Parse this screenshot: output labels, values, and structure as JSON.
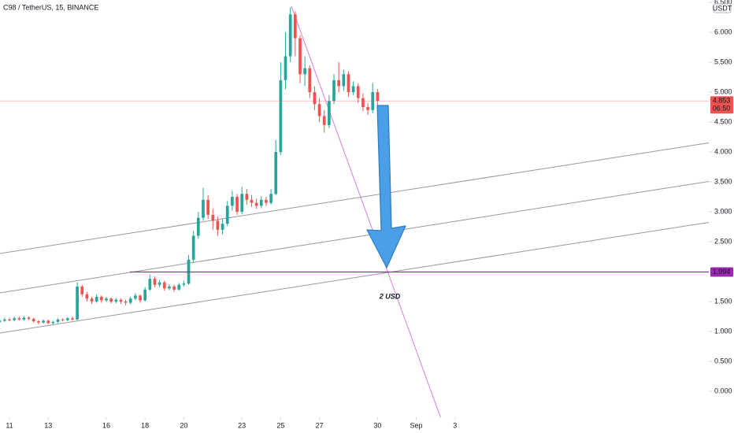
{
  "chart_data": {
    "type": "candlestick",
    "title": "C98 / TetherUS, 15, BINANCE",
    "currency": "USDT",
    "x": [
      10.5,
      10.75,
      11,
      11.25,
      11.5,
      11.75,
      12,
      12.25,
      12.5,
      12.75,
      13,
      13.25,
      13.5,
      13.75,
      14,
      14.25,
      14.5,
      14.75,
      15,
      15.25,
      15.5,
      15.75,
      16,
      16.25,
      16.5,
      16.75,
      17,
      17.25,
      17.5,
      17.75,
      18,
      18.25,
      18.5,
      18.75,
      19,
      19.25,
      19.5,
      19.75,
      20,
      20.25,
      20.5,
      20.75,
      21,
      21.25,
      21.5,
      21.75,
      22,
      22.25,
      22.5,
      22.75,
      23,
      23.25,
      23.5,
      23.75,
      24,
      24.25,
      24.5,
      24.75,
      25,
      25.25,
      25.5,
      25.75,
      26,
      26.25,
      26.5,
      26.75,
      27,
      27.25,
      27.5,
      27.75,
      28,
      28.25,
      28.5,
      28.75,
      29,
      29.25,
      29.5,
      29.75,
      30
    ],
    "open": [
      1.16,
      1.18,
      1.2,
      1.19,
      1.22,
      1.2,
      1.23,
      1.21,
      1.17,
      1.15,
      1.18,
      1.14,
      1.16,
      1.2,
      1.19,
      1.22,
      1.2,
      1.75,
      1.62,
      1.55,
      1.5,
      1.58,
      1.52,
      1.55,
      1.5,
      1.53,
      1.5,
      1.48,
      1.55,
      1.6,
      1.52,
      1.7,
      1.88,
      1.78,
      1.82,
      1.72,
      1.75,
      1.7,
      1.78,
      1.8,
      2.2,
      2.6,
      2.9,
      3.2,
      2.95,
      2.85,
      2.7,
      2.8,
      3.1,
      3.25,
      3.0,
      3.3,
      3.2,
      3.15,
      3.1,
      3.2,
      3.15,
      3.3,
      4.0,
      5.2,
      5.6,
      6.3,
      5.9,
      5.3,
      5.4,
      5.0,
      4.8,
      4.6,
      4.45,
      4.85,
      5.2,
      5.1,
      5.3,
      5.0,
      5.1,
      4.9,
      4.75,
      4.7,
      5.0
    ],
    "high": [
      1.21,
      1.23,
      1.23,
      1.25,
      1.25,
      1.26,
      1.25,
      1.23,
      1.19,
      1.2,
      1.2,
      1.18,
      1.22,
      1.22,
      1.24,
      1.25,
      1.82,
      1.78,
      1.66,
      1.58,
      1.62,
      1.6,
      1.58,
      1.57,
      1.56,
      1.55,
      1.53,
      1.58,
      1.64,
      1.62,
      1.74,
      1.95,
      1.92,
      1.86,
      1.85,
      1.79,
      1.78,
      1.81,
      1.85,
      2.28,
      2.68,
      3.0,
      3.4,
      3.28,
      3.05,
      2.92,
      2.88,
      3.18,
      3.35,
      3.3,
      3.42,
      3.38,
      3.28,
      3.22,
      3.26,
      3.25,
      3.38,
      4.2,
      5.5,
      6.0,
      6.42,
      6.35,
      5.95,
      5.6,
      5.45,
      5.1,
      4.9,
      4.7,
      4.95,
      5.3,
      5.5,
      5.38,
      5.35,
      5.18,
      5.15,
      4.98,
      4.82,
      5.15,
      5.05
    ],
    "low": [
      1.14,
      1.16,
      1.17,
      1.17,
      1.18,
      1.18,
      1.19,
      1.15,
      1.12,
      1.13,
      1.12,
      1.12,
      1.14,
      1.17,
      1.17,
      1.18,
      1.19,
      1.58,
      1.5,
      1.46,
      1.48,
      1.48,
      1.49,
      1.47,
      1.47,
      1.46,
      1.44,
      1.45,
      1.52,
      1.48,
      1.5,
      1.68,
      1.74,
      1.74,
      1.68,
      1.69,
      1.66,
      1.68,
      1.75,
      1.78,
      2.15,
      2.55,
      2.85,
      2.88,
      2.7,
      2.6,
      2.62,
      2.76,
      3.02,
      2.95,
      2.96,
      3.12,
      3.08,
      3.05,
      3.06,
      3.1,
      3.12,
      3.28,
      3.95,
      5.05,
      5.5,
      5.6,
      5.15,
      5.1,
      4.9,
      4.7,
      4.5,
      4.32,
      4.4,
      4.8,
      5.0,
      5.02,
      4.92,
      4.95,
      4.82,
      4.68,
      4.62,
      4.65,
      4.78
    ],
    "close": [
      1.18,
      1.2,
      1.19,
      1.22,
      1.2,
      1.23,
      1.21,
      1.17,
      1.15,
      1.18,
      1.14,
      1.16,
      1.2,
      1.19,
      1.22,
      1.2,
      1.75,
      1.62,
      1.55,
      1.5,
      1.58,
      1.52,
      1.55,
      1.5,
      1.53,
      1.5,
      1.48,
      1.55,
      1.6,
      1.52,
      1.7,
      1.88,
      1.78,
      1.82,
      1.72,
      1.75,
      1.7,
      1.78,
      1.8,
      2.2,
      2.6,
      2.9,
      3.2,
      2.95,
      2.85,
      2.7,
      2.8,
      3.1,
      3.25,
      3.0,
      3.3,
      3.2,
      3.15,
      3.1,
      3.2,
      3.15,
      3.3,
      4.0,
      5.2,
      5.6,
      6.3,
      5.9,
      5.3,
      5.4,
      5.0,
      4.8,
      4.6,
      4.45,
      4.85,
      5.2,
      5.1,
      5.3,
      5.0,
      5.1,
      4.9,
      4.75,
      4.7,
      5.0,
      4.85
    ],
    "up_color": "#26a69a",
    "down_color": "#ef5350",
    "last_price": 4.853,
    "countdown": "06:50",
    "last_price_color": "#ef5350",
    "level": 1.994,
    "level_color": "#9c27b0",
    "annotation": "2 USD",
    "xlim": [
      10.512,
      47.1
    ],
    "ylim": [
      -0.434,
      6.54
    ],
    "xticks": [
      11,
      13,
      16,
      18,
      20,
      23,
      25,
      27,
      30,
      {
        "value": 32,
        "label": "Sep"
      },
      {
        "value": 34,
        "label": "3"
      }
    ],
    "yticks": [
      {
        "value": 0,
        "label": "0.000"
      },
      {
        "value": 0.5,
        "label": "0.500"
      },
      {
        "value": 1,
        "label": "1.000"
      },
      {
        "value": 1.5,
        "label": "1.500"
      },
      {
        "value": 2.5,
        "label": "2.500"
      },
      {
        "value": 3,
        "label": "3.000"
      },
      {
        "value": 3.5,
        "label": "3.500"
      },
      {
        "value": 4,
        "label": "4.000"
      },
      {
        "value": 4.5,
        "label": "4.500"
      },
      {
        "value": 5,
        "label": "5.000"
      },
      {
        "value": 5.5,
        "label": "5.500"
      },
      {
        "value": 6,
        "label": "6.000"
      },
      {
        "value": 6.5,
        "label": "6.500"
      }
    ],
    "grid": false
  }
}
